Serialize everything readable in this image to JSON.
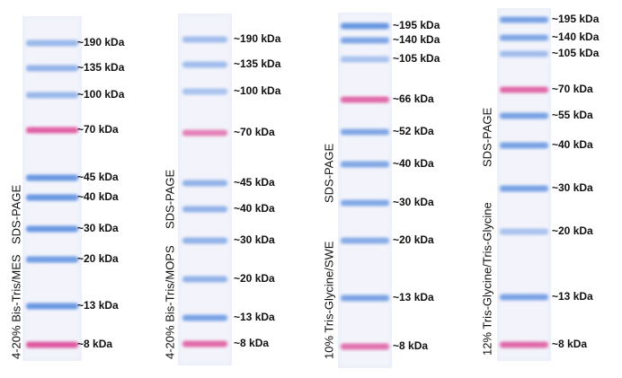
{
  "lanes": [
    {
      "title": "4-20% Bis-Tris/MES",
      "method": "SDS-PAGE",
      "bands": [
        "~190 kDa",
        "~135 kDa",
        "~100 kDa",
        "~70 kDa",
        "~45 kDa",
        "~40 kDa",
        "~30 kDa",
        "~20 kDa",
        "~13 kDa",
        "~8 kDa"
      ]
    },
    {
      "title": "4-20% Bis-Tris/MOPS",
      "method": "SDS-PAGE",
      "bands": [
        "~190 kDa",
        "~135 kDa",
        "~100 kDa",
        "~70 kDa",
        "~45 kDa",
        "~40 kDa",
        "~30 kDa",
        "~20 kDa",
        "~13 kDa",
        "~8 kDa"
      ]
    },
    {
      "title": "10% Tris-Glycine/SWE",
      "method": "SDS-PAGE",
      "bands": [
        "~195 kDa",
        "~140 kDa",
        "~105 kDa",
        "~66 kDa",
        "~52 kDa",
        "~40 kDa",
        "~30 kDa",
        "~20 kDa",
        "~13 kDa",
        "~8 kDa"
      ]
    },
    {
      "title": "12% Tris-Glycine/Tris-Glycine",
      "method": "SDS-PAGE",
      "bands": [
        "~195 kDa",
        "~140 kDa",
        "~105 kDa",
        "~70 kDa",
        "~55 kDa",
        "~40 kDa",
        "~30 kDa",
        "~20 kDa",
        "~13 kDa",
        "~8 kDa"
      ]
    }
  ]
}
